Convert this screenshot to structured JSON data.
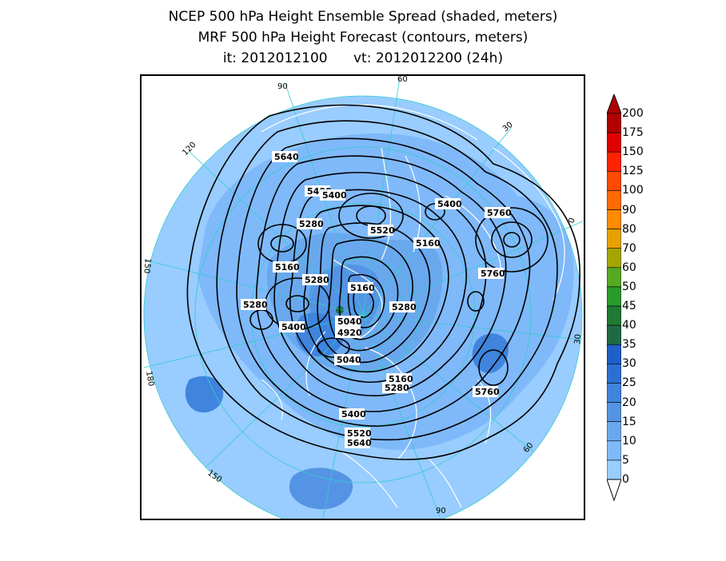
{
  "title": {
    "line1": "NCEP 500 hPa Height Ensemble Spread (shaded, meters)",
    "line2": "MRF 500 hPa Height Forecast (contours, meters)",
    "line3": "it: 2012012100      vt: 2012012200 (24h)"
  },
  "colors": {
    "ocean_spread": "#99ccff",
    "spread_10_15": "#6aa8ee",
    "spread_20_25": "#3f84dd",
    "spread_30": "#1f5fc8",
    "spread_35": "#1f6a44",
    "coastline": "#ffffff",
    "graticule": "#33cccc",
    "contour": "#000000"
  },
  "colorbar": {
    "levels": [
      "0",
      "5",
      "10",
      "15",
      "20",
      "25",
      "30",
      "35",
      "40",
      "45",
      "50",
      "60",
      "70",
      "80",
      "90",
      "100",
      "125",
      "150",
      "175",
      "200"
    ],
    "colors": [
      "#b9dcff",
      "#99ccff",
      "#7fb9fa",
      "#6aa8ee",
      "#5594e4",
      "#3f84dd",
      "#2b6fd2",
      "#1f5fc8",
      "#1f6a44",
      "#1f7a33",
      "#2a9a2a",
      "#55aa22",
      "#a5a500",
      "#e6a100",
      "#ff8c00",
      "#ff6a00",
      "#ff4a00",
      "#ff2200",
      "#e00000",
      "#b00000"
    ]
  },
  "longitude_labels": [
    "60",
    "30",
    "0",
    "30",
    "60",
    "90",
    "120",
    "150",
    "180",
    "150",
    "120",
    "90"
  ],
  "contour_labels": [
    "5640",
    "5400",
    "5400",
    "5280",
    "5520",
    "5400",
    "5760",
    "5160",
    "5160",
    "5280",
    "5760",
    "5160",
    "5280",
    "5280",
    "5400",
    "5040",
    "4920",
    "5040",
    "5160",
    "5280",
    "5760",
    "5400",
    "5520",
    "5640"
  ],
  "map_data": {
    "projection": "polar-stereographic",
    "pole": "north",
    "center_lon_down": "90W",
    "contour_interval_m": 60
  }
}
